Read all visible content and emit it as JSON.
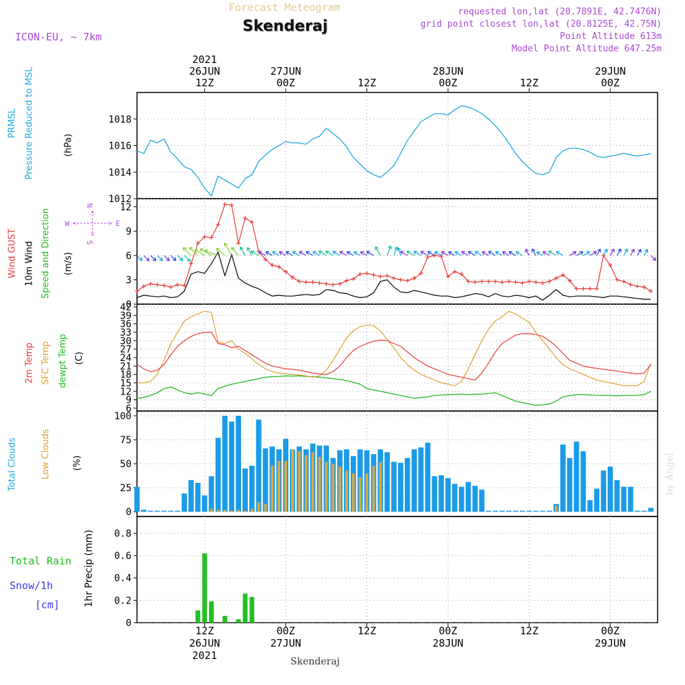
{
  "header": {
    "subtitle": "Forecast Meteogram",
    "title": "Skenderaj",
    "model": "ICON-EU, ~ 7km",
    "info_lines": [
      "requested lon,lat (20.7891E, 42.7476N)",
      "grid point closest lon,lat (20.8125E, 42.75N)",
      "Point Altitude 613m",
      "Model Point Altitude 647.25m"
    ],
    "footer_location": "Skenderaj",
    "watermark": "by Angel"
  },
  "time_axis": {
    "top_year": "2021",
    "ticks": [
      {
        "hour": 12,
        "label1": "26JUN",
        "label2": "12Z"
      },
      {
        "hour": 24,
        "label1": "27JUN",
        "label2": "00Z"
      },
      {
        "hour": 36,
        "label1": "",
        "label2": "12Z"
      },
      {
        "hour": 48,
        "label1": "28JUN",
        "label2": "00Z"
      },
      {
        "hour": 60,
        "label1": "",
        "label2": "12Z"
      },
      {
        "hour": 72,
        "label1": "29JUN",
        "label2": "00Z"
      }
    ],
    "bottom_ticks": [
      {
        "hour": 12,
        "label1": "12Z",
        "label2": "26JUN",
        "label3": "2021"
      },
      {
        "hour": 24,
        "label1": "00Z",
        "label2": "27JUN"
      },
      {
        "hour": 36,
        "label1": "12Z",
        "label2": ""
      },
      {
        "hour": 48,
        "label1": "00Z",
        "label2": "28JUN"
      },
      {
        "hour": 60,
        "label1": "12Z",
        "label2": ""
      },
      {
        "hour": 72,
        "label1": "00Z",
        "label2": "29JUN"
      }
    ]
  },
  "panels": {
    "pressure": {
      "labels": [
        {
          "text": "PRMSL",
          "color": "#1fa8e0"
        },
        {
          "text": "Pressure Reduced to MSL",
          "color": "#1fa8e0"
        },
        {
          "text": "(hPa)",
          "color": "#000000"
        }
      ],
      "ticks": [
        "1012",
        "1014",
        "1016",
        "1018"
      ]
    },
    "wind": {
      "labels": [
        {
          "text": "Wind GUST",
          "color": "#e83a3a"
        },
        {
          "text": "10m Wind",
          "color": "#000000"
        },
        {
          "text": "Speed and Direction",
          "color": "#22bb22"
        },
        {
          "text": "(m/s)",
          "color": "#000000"
        }
      ],
      "ticks": [
        "0",
        "3",
        "6",
        "9",
        "12"
      ],
      "compass": {
        "n": "N",
        "s": "S",
        "w": "W",
        "e": "E"
      }
    },
    "temp": {
      "labels": [
        {
          "text": "2m Temp",
          "color": "#e83a3a"
        },
        {
          "text": "SFC Temp",
          "color": "#e0a030"
        },
        {
          "text": "dewpt Temp",
          "color": "#22bb22"
        },
        {
          "text": "(C)",
          "color": "#000000"
        }
      ],
      "ticks": [
        "6",
        "9",
        "12",
        "15",
        "18",
        "21",
        "24",
        "27",
        "30",
        "33",
        "36",
        "39",
        "42"
      ]
    },
    "clouds": {
      "labels": [
        {
          "text": "Total Clouds",
          "color": "#1fa8e0"
        },
        {
          "text": "Low Clouds",
          "color": "#e0a030"
        },
        {
          "text": "(%)",
          "color": "#000000"
        }
      ],
      "ticks": [
        "0",
        "25",
        "50",
        "75",
        "100"
      ]
    },
    "precip": {
      "labels_left": [
        {
          "text": "Total  Rain",
          "color": "#22bb22"
        },
        {
          "text": "Snow/1h",
          "color": "#3a3ae8"
        },
        {
          "text": "[cm]",
          "color": "#3a3ae8"
        }
      ],
      "axis_label": "1hr Precip (mm)",
      "ticks": [
        "0",
        "0.2",
        "0.4",
        "0.6",
        "0.8"
      ]
    }
  },
  "chart_data": {
    "type": "line",
    "x_unit": "hour since 26JUN 00Z",
    "x_range": [
      2,
      79
    ],
    "pressure": {
      "name": "PRMSL",
      "ylim": [
        1012,
        1020
      ],
      "x": [
        2,
        3,
        4,
        5,
        6,
        7,
        8,
        9,
        10,
        11,
        12,
        13,
        14,
        15,
        16,
        17,
        18,
        19,
        20,
        21,
        22,
        23,
        24,
        25,
        26,
        27,
        28,
        29,
        30,
        31,
        32,
        33,
        34,
        35,
        36,
        37,
        38,
        39,
        40,
        41,
        42,
        43,
        44,
        45,
        46,
        47,
        48,
        49,
        50,
        51,
        52,
        53,
        54,
        55,
        56,
        57,
        58,
        59,
        60,
        61,
        62,
        63,
        64,
        65,
        66,
        67,
        68,
        69,
        70,
        71,
        72,
        73,
        74,
        75,
        76,
        77,
        78
      ],
      "values": [
        1015.6,
        1015.4,
        1016.4,
        1016.2,
        1016.5,
        1015.5,
        1015.0,
        1014.4,
        1014.2,
        1013.6,
        1012.8,
        1012.2,
        1013.7,
        1013.4,
        1013.1,
        1012.8,
        1013.5,
        1013.8,
        1014.8,
        1015.3,
        1015.7,
        1016.0,
        1016.3,
        1016.2,
        1016.2,
        1016.1,
        1016.5,
        1016.7,
        1017.3,
        1016.9,
        1016.5,
        1015.9,
        1015.1,
        1014.6,
        1014.1,
        1013.8,
        1013.6,
        1014.0,
        1014.5,
        1015.4,
        1016.4,
        1017.1,
        1017.8,
        1018.1,
        1018.4,
        1018.4,
        1018.3,
        1018.7,
        1019.0,
        1018.9,
        1018.7,
        1018.4,
        1018.0,
        1017.5,
        1016.9,
        1016.2,
        1015.4,
        1014.8,
        1014.3,
        1013.9,
        1013.8,
        1014.0,
        1015.1,
        1015.6,
        1015.8,
        1015.8,
        1015.7,
        1015.5,
        1015.2,
        1015.1,
        1015.2,
        1015.3,
        1015.4,
        1015.3,
        1015.2,
        1015.3,
        1015.4
      ]
    },
    "wind": {
      "ylim": [
        0,
        13
      ],
      "x": [
        2,
        3,
        4,
        5,
        6,
        7,
        8,
        9,
        10,
        11,
        12,
        13,
        14,
        15,
        16,
        17,
        18,
        19,
        20,
        21,
        22,
        23,
        24,
        25,
        26,
        27,
        28,
        29,
        30,
        31,
        32,
        33,
        34,
        35,
        36,
        37,
        38,
        39,
        40,
        41,
        42,
        43,
        44,
        45,
        46,
        47,
        48,
        49,
        50,
        51,
        52,
        53,
        54,
        55,
        56,
        57,
        58,
        59,
        60,
        61,
        62,
        63,
        64,
        65,
        66,
        67,
        68,
        69,
        70,
        71,
        72,
        73,
        74,
        75,
        76,
        77,
        78
      ],
      "gust": [
        1.6,
        2.2,
        2.5,
        2.4,
        2.3,
        2.1,
        2.4,
        2.3,
        5.0,
        7.5,
        8.3,
        8.2,
        9.8,
        12.3,
        12.2,
        7.5,
        10.6,
        10.1,
        6.5,
        5.5,
        4.8,
        4.6,
        4.0,
        3.3,
        2.8,
        2.7,
        2.7,
        2.6,
        2.5,
        2.4,
        2.5,
        2.9,
        3.1,
        3.7,
        3.8,
        3.6,
        3.4,
        3.5,
        3.2,
        3.0,
        2.9,
        3.2,
        3.8,
        5.8,
        6.0,
        5.9,
        3.4,
        4.0,
        3.7,
        2.8,
        2.7,
        2.8,
        2.8,
        2.8,
        2.7,
        2.8,
        2.7,
        2.6,
        2.8,
        2.7,
        2.6,
        2.8,
        3.2,
        3.6,
        2.9,
        1.9,
        1.9,
        1.9,
        1.9,
        6.0,
        4.8,
        3.0,
        2.8,
        2.4,
        2.2,
        2.1,
        1.6
      ],
      "speed": [
        0.8,
        1.1,
        1.0,
        0.9,
        1.0,
        0.8,
        0.9,
        1.6,
        3.7,
        4.0,
        3.8,
        5.0,
        6.4,
        3.5,
        6.1,
        3.2,
        2.6,
        2.2,
        1.9,
        1.4,
        1.0,
        1.1,
        1.0,
        1.0,
        1.1,
        1.2,
        1.1,
        1.2,
        1.8,
        1.7,
        1.4,
        1.3,
        1.0,
        0.8,
        0.9,
        1.4,
        2.8,
        3.0,
        2.1,
        1.5,
        1.4,
        1.7,
        1.5,
        1.3,
        1.1,
        1.0,
        1.0,
        0.8,
        0.9,
        1.1,
        1.3,
        1.2,
        0.9,
        1.3,
        1.0,
        0.9,
        1.1,
        1.0,
        0.8,
        1.0,
        0.5,
        1.1,
        1.8,
        1.1,
        0.9,
        1.0,
        1.0,
        1.0,
        0.9,
        0.8,
        1.0,
        1.0,
        0.9,
        0.8,
        0.7,
        0.6,
        0.6
      ],
      "barb_level": 6.0,
      "barb_dir_deg": [
        135,
        135,
        135,
        135,
        135,
        135,
        135,
        135,
        315,
        315,
        300,
        300,
        290,
        310,
        330,
        320,
        330,
        330,
        300,
        300,
        300,
        300,
        300,
        300,
        300,
        300,
        300,
        300,
        300,
        300,
        300,
        300,
        300,
        300,
        300,
        300,
        330,
        20,
        20,
        340,
        300,
        300,
        300,
        300,
        300,
        300,
        300,
        300,
        300,
        300,
        300,
        300,
        300,
        300,
        300,
        300,
        300,
        300,
        330,
        330,
        300,
        300,
        300,
        300,
        60,
        60,
        60,
        60,
        30,
        30,
        30,
        30,
        30,
        30,
        30,
        30,
        135
      ]
    },
    "temp": {
      "ylim": [
        5,
        43
      ],
      "x": [
        2,
        3,
        4,
        5,
        6,
        7,
        8,
        9,
        10,
        11,
        12,
        13,
        14,
        15,
        16,
        17,
        18,
        19,
        20,
        21,
        22,
        23,
        24,
        25,
        26,
        27,
        28,
        29,
        30,
        31,
        32,
        33,
        34,
        35,
        36,
        37,
        38,
        39,
        40,
        41,
        42,
        43,
        44,
        45,
        46,
        47,
        48,
        49,
        50,
        51,
        52,
        53,
        54,
        55,
        56,
        57,
        58,
        59,
        60,
        61,
        62,
        63,
        64,
        65,
        66,
        67,
        68,
        69,
        70,
        71,
        72,
        73,
        74,
        75,
        76,
        77,
        78
      ],
      "t2m": [
        21.5,
        20.0,
        19.0,
        19.5,
        21.5,
        25.0,
        28.0,
        30.0,
        31.5,
        32.5,
        33.0,
        33.0,
        29.0,
        28.5,
        27.5,
        28.0,
        26.5,
        25.0,
        23.5,
        22.0,
        21.0,
        20.5,
        20.0,
        19.8,
        19.5,
        19.0,
        18.5,
        18.2,
        18.0,
        19.0,
        21.0,
        24.0,
        26.5,
        28.0,
        29.0,
        29.8,
        30.2,
        30.0,
        29.0,
        28.0,
        26.0,
        24.0,
        22.5,
        21.0,
        20.0,
        19.0,
        18.0,
        17.5,
        17.0,
        16.5,
        16.0,
        18.5,
        22.0,
        26.0,
        29.0,
        30.5,
        32.0,
        32.5,
        32.5,
        32.2,
        31.5,
        30.0,
        28.0,
        25.5,
        23.0,
        22.0,
        21.0,
        20.5,
        20.2,
        19.8,
        19.5,
        19.2,
        18.8,
        18.5,
        18.2,
        18.5,
        21.5
      ],
      "sfc": [
        15.0,
        15.0,
        15.5,
        18.0,
        23.0,
        29.0,
        33.0,
        37.0,
        38.5,
        39.5,
        40.5,
        40.0,
        29.5,
        29.0,
        30.0,
        27.0,
        25.5,
        23.5,
        21.5,
        20.0,
        19.0,
        18.5,
        18.2,
        18.0,
        17.8,
        17.5,
        17.0,
        17.5,
        19.5,
        23.0,
        27.0,
        31.0,
        33.5,
        35.0,
        35.5,
        35.3,
        33.5,
        30.5,
        27.5,
        24.0,
        21.5,
        19.5,
        18.0,
        17.0,
        16.0,
        15.0,
        14.5,
        14.0,
        15.5,
        20.0,
        25.0,
        30.0,
        34.0,
        37.0,
        38.5,
        40.5,
        39.5,
        38.0,
        36.5,
        33.0,
        30.0,
        27.0,
        24.0,
        21.5,
        20.0,
        19.0,
        18.0,
        17.0,
        16.0,
        15.5,
        15.0,
        14.5,
        14.0,
        14.0,
        14.0,
        15.5,
        22.0
      ],
      "dew": [
        9.5,
        9.8,
        10.5,
        11.5,
        13.0,
        13.5,
        12.5,
        11.5,
        11.0,
        11.5,
        11.0,
        10.5,
        13.0,
        13.8,
        14.5,
        15.0,
        15.5,
        16.0,
        16.5,
        17.0,
        17.2,
        17.3,
        17.5,
        17.4,
        17.5,
        17.3,
        17.2,
        17.0,
        16.8,
        16.5,
        16.2,
        15.8,
        15.2,
        14.5,
        13.0,
        12.5,
        12.0,
        11.5,
        11.0,
        10.5,
        10.0,
        9.5,
        9.8,
        10.0,
        10.5,
        10.7,
        10.8,
        10.9,
        11.0,
        10.8,
        11.0,
        11.0,
        11.2,
        11.5,
        10.5,
        9.5,
        8.5,
        8.0,
        7.5,
        7.0,
        7.2,
        7.5,
        8.5,
        10.0,
        10.5,
        10.8,
        10.8,
        10.7,
        10.6,
        10.5,
        10.5,
        10.4,
        10.5,
        10.5,
        10.6,
        10.8,
        12.0
      ]
    },
    "clouds": {
      "type": "bar",
      "ylim": [
        -5,
        105
      ],
      "x": [
        2,
        3,
        4,
        5,
        6,
        7,
        8,
        9,
        10,
        11,
        12,
        13,
        14,
        15,
        16,
        17,
        18,
        19,
        20,
        21,
        22,
        23,
        24,
        25,
        26,
        27,
        28,
        29,
        30,
        31,
        32,
        33,
        34,
        35,
        36,
        37,
        38,
        39,
        40,
        41,
        42,
        43,
        44,
        45,
        46,
        47,
        48,
        49,
        50,
        51,
        52,
        53,
        54,
        55,
        56,
        57,
        58,
        59,
        60,
        61,
        62,
        63,
        64,
        65,
        66,
        67,
        68,
        69,
        70,
        71,
        72,
        73,
        74,
        75,
        76,
        77,
        78
      ],
      "total": [
        26,
        2,
        1,
        1,
        1,
        1,
        1,
        19,
        33,
        30,
        17,
        37,
        77,
        100,
        94,
        100,
        45,
        48,
        96,
        66,
        68,
        65,
        76,
        65,
        68,
        65,
        71,
        69,
        69,
        56,
        64,
        65,
        58,
        65,
        64,
        60,
        65,
        62,
        52,
        51,
        56,
        65,
        67,
        72,
        37,
        38,
        35,
        29,
        26,
        31,
        27,
        23,
        1,
        1,
        1,
        1,
        1,
        1,
        1,
        1,
        1,
        1,
        8,
        70,
        56,
        73,
        63,
        12,
        24,
        43,
        47,
        33,
        26,
        26,
        1,
        1,
        4
      ],
      "low": [
        0,
        0,
        0,
        0,
        0,
        0,
        0,
        0,
        0,
        0,
        0,
        3,
        2,
        2,
        1,
        2,
        1,
        3,
        10,
        8,
        48,
        53,
        53,
        65,
        63,
        59,
        62,
        57,
        52,
        50,
        47,
        43,
        40,
        36,
        40,
        48,
        52,
        0,
        0,
        0,
        0,
        0,
        0,
        0,
        0,
        0,
        0,
        0,
        0,
        0,
        0,
        0,
        0,
        0,
        0,
        0,
        0,
        0,
        0,
        0,
        0,
        0,
        6,
        0,
        0,
        0,
        0,
        0,
        0,
        0,
        0,
        0,
        0,
        0,
        0,
        0,
        0
      ]
    },
    "precip": {
      "type": "bar",
      "ylim": [
        0,
        0.95
      ],
      "x": [
        11,
        12,
        13,
        15,
        17,
        18,
        19
      ],
      "rain": [
        0.11,
        0.62,
        0.19,
        0.06,
        0.03,
        0.26,
        0.23
      ]
    }
  }
}
